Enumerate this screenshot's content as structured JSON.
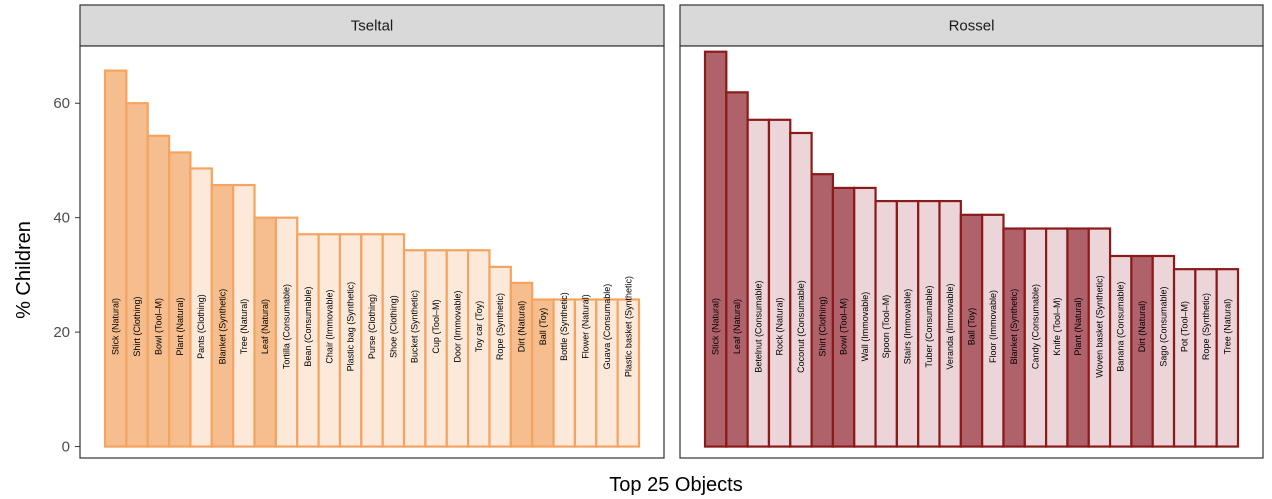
{
  "chart_data": {
    "type": "bar",
    "xlabel": "Top 25 Objects",
    "ylabel": "% Children",
    "ylim": [
      -2,
      70
    ],
    "yticks": [
      0,
      20,
      40,
      60
    ],
    "grid": false,
    "panels": [
      {
        "name": "Tseltal",
        "colors": {
          "stroke": "#F4A460",
          "dark": "#F6BE8E",
          "light": "#FDE9DA"
        },
        "categories": [
          "Stick (Natural)",
          "Shirt (Clothing)",
          "Bowl (Tool–M)",
          "Plant (Natural)",
          "Pants (Clothing)",
          "Blanket (Synthetic)",
          "Tree (Natural)",
          "Leaf (Natural)",
          "Tortilla (Consumable)",
          "Bean (Consumable)",
          "Chair (Immovable)",
          "Plastic bag (Synthetic)",
          "Purse (Clothing)",
          "Shoe (Clothing)",
          "Bucket (Synthetic)",
          "Cup (Tool–M)",
          "Door (Immovable)",
          "Toy car (Toy)",
          "Rope (Synthetic)",
          "Dirt (Natural)",
          "Ball (Toy)",
          "Bottle (Synthetic)",
          "Flower (Natural)",
          "Guava (Consumable)",
          "Plastic basket (Synthetic)"
        ],
        "values": [
          65.7,
          60.0,
          54.3,
          51.4,
          48.6,
          45.7,
          45.7,
          40.0,
          40.0,
          37.1,
          37.1,
          37.1,
          37.1,
          37.1,
          34.3,
          34.3,
          34.3,
          34.3,
          31.4,
          28.6,
          25.7,
          25.7,
          25.7,
          25.7,
          25.7
        ],
        "highlighted": [
          true,
          true,
          true,
          true,
          false,
          true,
          false,
          true,
          false,
          false,
          false,
          false,
          false,
          false,
          false,
          false,
          false,
          false,
          false,
          true,
          true,
          false,
          false,
          false,
          false
        ]
      },
      {
        "name": "Rossel",
        "colors": {
          "stroke": "#8B1A1A",
          "dark": "#B0626A",
          "light": "#EBD5D8"
        },
        "categories": [
          "Stick (Natural)",
          "Leaf (Natural)",
          "Betelnut (Consumable)",
          "Rock (Natural)",
          "Coconut (Consumable)",
          "Shirt (Clothing)",
          "Bowl (Tool–M)",
          "Wall (Immovable)",
          "Spoon (Tool–M)",
          "Stairs (Immovable)",
          "Tuber (Consumable)",
          "Veranda (Immovable)",
          "Ball (Toy)",
          "Floor (Immovable)",
          "Blanket (Synthetic)",
          "Candy (Consumable)",
          "Knife (Tool–M)",
          "Plant (Natural)",
          "Woven basket (Synthetic)",
          "Banana (Consumable)",
          "Dirt (Natural)",
          "Sago (Consumable)",
          "Pot (Tool–M)",
          "Rope (Synthetic)",
          "Tree (Natural)"
        ],
        "values": [
          69.0,
          61.9,
          57.1,
          57.1,
          54.8,
          47.6,
          45.2,
          45.2,
          42.9,
          42.9,
          42.9,
          42.9,
          40.5,
          40.5,
          38.1,
          38.1,
          38.1,
          38.1,
          38.1,
          33.3,
          33.3,
          33.3,
          31.0,
          31.0,
          31.0
        ],
        "highlighted": [
          true,
          true,
          false,
          false,
          false,
          true,
          true,
          false,
          false,
          false,
          false,
          false,
          true,
          false,
          true,
          false,
          false,
          true,
          false,
          false,
          true,
          false,
          false,
          false,
          false
        ]
      }
    ]
  }
}
